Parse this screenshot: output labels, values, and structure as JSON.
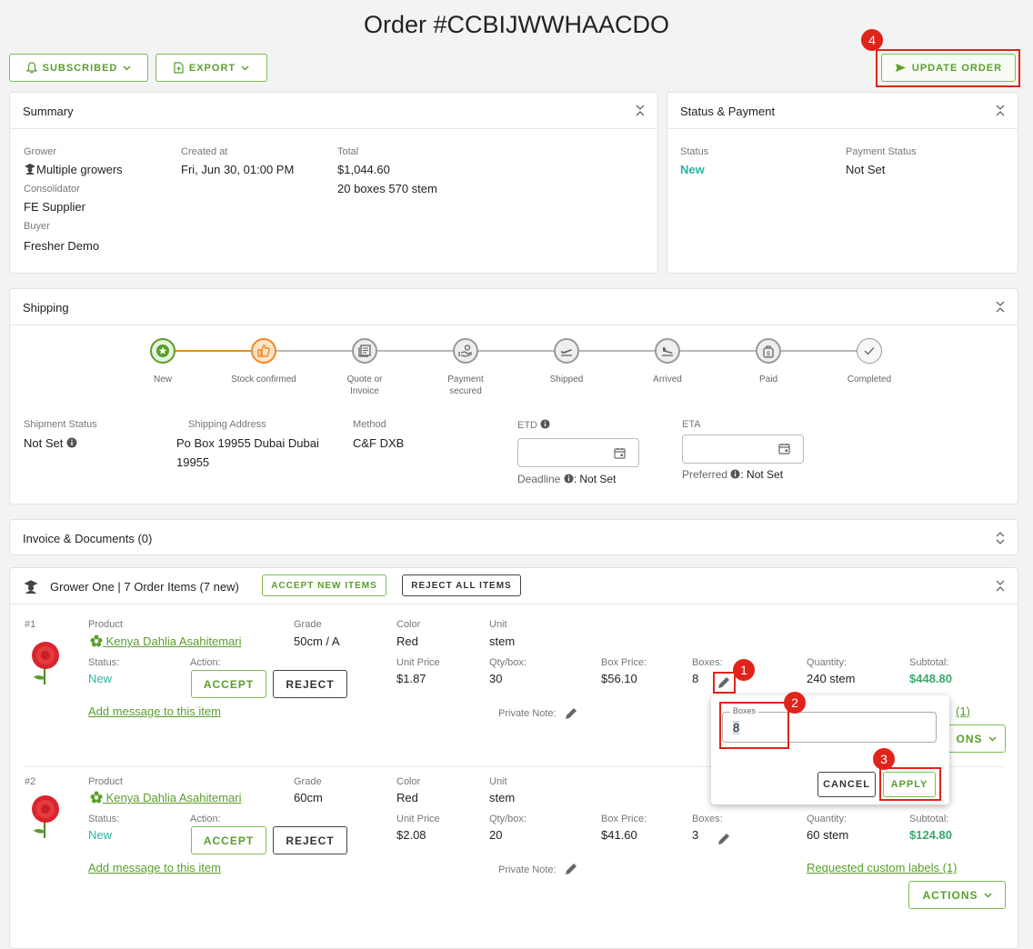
{
  "page_title": "Order #CCBIJWWHAACDO",
  "toolbar": {
    "subscribed_label": "SUBSCRIBED",
    "export_label": "EXPORT",
    "update_order_label": "UPDATE ORDER"
  },
  "summary": {
    "title": "Summary",
    "grower_label": "Grower",
    "grower_value": "Multiple growers",
    "consolidator_label": "Consolidator",
    "consolidator_value": "FE Supplier",
    "buyer_label": "Buyer",
    "buyer_value": "Fresher Demo",
    "created_label": "Created at",
    "created_value": "Fri, Jun 30, 01:00 PM",
    "total_label": "Total",
    "total_value": "$1,044.60",
    "total_detail": "20 boxes 570 stem"
  },
  "status_payment": {
    "title": "Status & Payment",
    "status_label": "Status",
    "status_value": "New",
    "payment_label": "Payment Status",
    "payment_value": "Not Set"
  },
  "shipping": {
    "title": "Shipping",
    "steps": [
      {
        "label": "New"
      },
      {
        "label": "Stock confirmed"
      },
      {
        "label": "Quote or Invoice"
      },
      {
        "label": "Payment secured"
      },
      {
        "label": "Shipped"
      },
      {
        "label": "Arrived"
      },
      {
        "label": "Paid"
      },
      {
        "label": "Completed"
      }
    ],
    "shipment_status_label": "Shipment Status",
    "shipment_status_value": "Not Set",
    "address_label": "Shipping Address",
    "address_line1": "Po Box 19955 Dubai Dubai",
    "address_line2": "19955",
    "method_label": "Method",
    "method_value": "C&F DXB",
    "etd_label": "ETD",
    "deadline_label": "Deadline",
    "deadline_value": ": Not Set",
    "eta_label": "ETA",
    "preferred_label": "Preferred",
    "preferred_value": ": Not Set"
  },
  "invoice": {
    "title": "Invoice & Documents (0)"
  },
  "grower_section": {
    "title": "Grower One | 7 Order Items (7 new)",
    "accept_new_label": "ACCEPT NEW ITEMS",
    "reject_all_label": "REJECT ALL ITEMS"
  },
  "item_labels": {
    "product": "Product",
    "grade": "Grade",
    "color": "Color",
    "unit": "Unit",
    "status": "Status:",
    "action": "Action:",
    "unit_price": "Unit Price",
    "qty_box": "Qty/box:",
    "box_price": "Box Price:",
    "boxes": "Boxes:",
    "quantity": "Quantity:",
    "subtotal": "Subtotal:",
    "accept": "ACCEPT",
    "reject": "REJECT",
    "add_message": "Add message to this item",
    "private_note": "Private Note:",
    "requested_labels": "Requested custom labels (1)",
    "actions": "ACTIONS"
  },
  "items": [
    {
      "index": "#1",
      "product": "Kenya Dahlia Asahitemari",
      "grade": "50cm / A",
      "color": "Red",
      "unit": "stem",
      "status": "New",
      "unit_price": "$1.87",
      "qty_box": "30",
      "box_price": "$56.10",
      "boxes": "8",
      "quantity": "240 stem",
      "subtotal": "$448.80",
      "requested_labels_partial": "(1)",
      "actions_partial": "ONS"
    },
    {
      "index": "#2",
      "product": "Kenya Dahlia Asahitemari",
      "grade": "60cm",
      "color": "Red",
      "unit": "stem",
      "status": "New",
      "unit_price": "$2.08",
      "qty_box": "20",
      "box_price": "$41.60",
      "boxes": "3",
      "quantity": "60 stem",
      "subtotal": "$124.80"
    }
  ],
  "popover": {
    "field_label": "Boxes",
    "field_value": "8",
    "cancel_label": "CANCEL",
    "apply_label": "APPLY"
  },
  "markers": [
    "1",
    "2",
    "3",
    "4"
  ],
  "colors": {
    "accent_green": "#5a9e2c",
    "status_teal": "#2bb3a3",
    "progress_orange": "#f08a24",
    "annotation_red": "#e0241b"
  }
}
